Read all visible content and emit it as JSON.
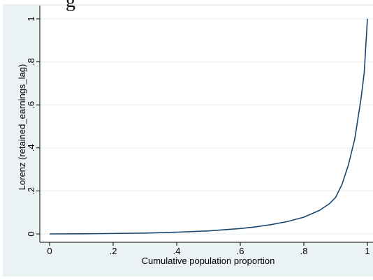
{
  "page": {
    "heading_fragment": "g"
  },
  "chart_data": {
    "type": "line",
    "title": "",
    "xlabel": "Cumulative population proportion",
    "ylabel": "Lorenz (retained_earnings_lag)",
    "xlim": [
      0,
      1
    ],
    "ylim": [
      0,
      1
    ],
    "x_ticks": [
      0,
      0.2,
      0.4,
      0.6,
      0.8,
      1
    ],
    "x_tick_labels": [
      "0",
      ".2",
      ".4",
      ".6",
      ".8",
      "1"
    ],
    "y_ticks": [
      0,
      0.2,
      0.4,
      0.6,
      0.8,
      1
    ],
    "y_tick_labels": [
      "0",
      ".2",
      ".4",
      ".6",
      ".8",
      "1"
    ],
    "grid": "horizontal",
    "legend": "none",
    "colors": {
      "outer_background": "#eaf2f3",
      "plot_background": "#ffffff",
      "gridline": "#eaf2f3",
      "line": "#1a476f",
      "text": "#000000"
    },
    "series": [
      {
        "x": [
          0,
          0.1,
          0.2,
          0.3,
          0.4,
          0.5,
          0.6,
          0.65,
          0.7,
          0.75,
          0.8,
          0.85,
          0.88,
          0.9,
          0.92,
          0.94,
          0.96,
          0.98,
          0.99,
          1.0
        ],
        "y": [
          0,
          0.0005,
          0.002,
          0.004,
          0.008,
          0.014,
          0.025,
          0.033,
          0.044,
          0.058,
          0.078,
          0.11,
          0.14,
          0.17,
          0.23,
          0.32,
          0.44,
          0.63,
          0.75,
          1.0
        ]
      }
    ]
  }
}
